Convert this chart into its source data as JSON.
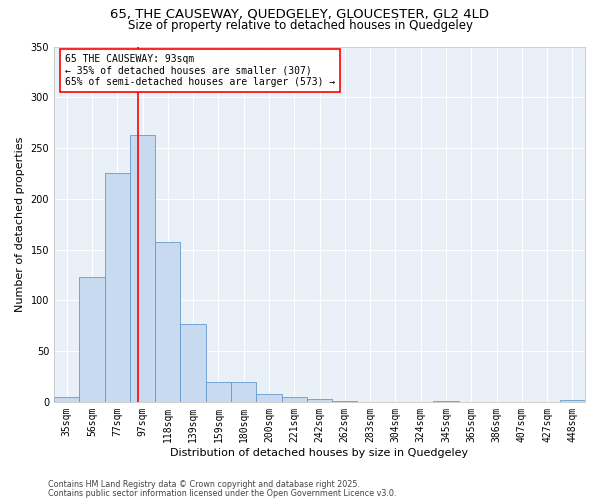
{
  "title1": "65, THE CAUSEWAY, QUEDGELEY, GLOUCESTER, GL2 4LD",
  "title2": "Size of property relative to detached houses in Quedgeley",
  "xlabel": "Distribution of detached houses by size in Quedgeley",
  "ylabel": "Number of detached properties",
  "bins": [
    "35sqm",
    "56sqm",
    "77sqm",
    "97sqm",
    "118sqm",
    "139sqm",
    "159sqm",
    "180sqm",
    "200sqm",
    "221sqm",
    "242sqm",
    "262sqm",
    "283sqm",
    "304sqm",
    "324sqm",
    "345sqm",
    "365sqm",
    "386sqm",
    "407sqm",
    "427sqm",
    "448sqm"
  ],
  "values": [
    5,
    123,
    225,
    263,
    157,
    77,
    20,
    20,
    8,
    5,
    3,
    1,
    0,
    0,
    0,
    1,
    0,
    0,
    0,
    0,
    2
  ],
  "bar_color": "#c8daf0",
  "bar_edge_color": "#6699cc",
  "red_line_x": 2.82,
  "annotation_line1": "65 THE CAUSEWAY: 93sqm",
  "annotation_line2": "← 35% of detached houses are smaller (307)",
  "annotation_line3": "65% of semi-detached houses are larger (573) →",
  "annotation_box_color": "white",
  "annotation_box_edge": "red",
  "ylim": [
    0,
    350
  ],
  "yticks": [
    0,
    50,
    100,
    150,
    200,
    250,
    300,
    350
  ],
  "background_color": "#eaf0f8",
  "grid_color": "white",
  "footer1": "Contains HM Land Registry data © Crown copyright and database right 2025.",
  "footer2": "Contains public sector information licensed under the Open Government Licence v3.0.",
  "title1_fontsize": 9.5,
  "title2_fontsize": 8.5,
  "xlabel_fontsize": 8,
  "ylabel_fontsize": 8,
  "tick_fontsize": 7,
  "annotation_fontsize": 7,
  "footer_fontsize": 5.8
}
